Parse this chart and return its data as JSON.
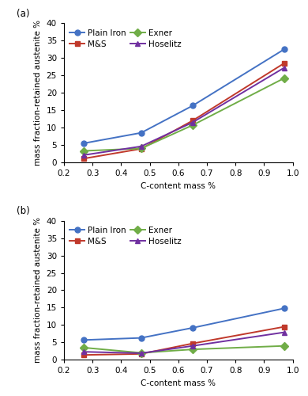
{
  "panel_a": {
    "label": "(a)",
    "series": {
      "Plain Iron": {
        "x": [
          0.27,
          0.47,
          0.65,
          0.97
        ],
        "y": [
          5.5,
          8.5,
          16.3,
          32.5
        ],
        "color": "#4472C4",
        "marker": "o",
        "linestyle": "-"
      },
      "M&S": {
        "x": [
          0.27,
          0.47,
          0.65,
          0.97
        ],
        "y": [
          1.1,
          3.9,
          12.0,
          28.5
        ],
        "color": "#C0392B",
        "marker": "s",
        "linestyle": "-"
      },
      "Exner": {
        "x": [
          0.27,
          0.47,
          0.65,
          0.97
        ],
        "y": [
          3.3,
          4.0,
          10.7,
          24.2
        ],
        "color": "#70AD47",
        "marker": "D",
        "linestyle": "-"
      },
      "Hoselitz": {
        "x": [
          0.27,
          0.47,
          0.65,
          0.97
        ],
        "y": [
          2.1,
          4.6,
          11.5,
          27.2
        ],
        "color": "#7030A0",
        "marker": "^",
        "linestyle": "-"
      }
    },
    "ylim": [
      0,
      40
    ],
    "yticks": [
      0,
      5,
      10,
      15,
      20,
      25,
      30,
      35,
      40
    ],
    "xlim": [
      0.2,
      1.0
    ],
    "xticks": [
      0.2,
      0.3,
      0.4,
      0.5,
      0.6,
      0.7,
      0.8,
      0.9,
      1.0
    ],
    "ylabel": "mass fraction-retained austenite %",
    "xlabel": "C-content mass %"
  },
  "panel_b": {
    "label": "(b)",
    "series": {
      "Plain Iron": {
        "x": [
          0.27,
          0.47,
          0.65,
          0.97
        ],
        "y": [
          5.7,
          6.3,
          9.2,
          14.8
        ],
        "color": "#4472C4",
        "marker": "o",
        "linestyle": "-"
      },
      "M&S": {
        "x": [
          0.27,
          0.47,
          0.65,
          0.97
        ],
        "y": [
          1.4,
          1.7,
          4.7,
          9.5
        ],
        "color": "#C0392B",
        "marker": "s",
        "linestyle": "-"
      },
      "Exner": {
        "x": [
          0.27,
          0.47,
          0.65,
          0.97
        ],
        "y": [
          3.5,
          2.0,
          3.0,
          4.0
        ],
        "color": "#70AD47",
        "marker": "D",
        "linestyle": "-"
      },
      "Hoselitz": {
        "x": [
          0.27,
          0.47,
          0.65,
          0.97
        ],
        "y": [
          2.3,
          1.9,
          4.0,
          7.9
        ],
        "color": "#7030A0",
        "marker": "^",
        "linestyle": "-"
      }
    },
    "ylim": [
      0,
      40
    ],
    "yticks": [
      0,
      5,
      10,
      15,
      20,
      25,
      30,
      35,
      40
    ],
    "xlim": [
      0.2,
      1.0
    ],
    "xticks": [
      0.2,
      0.3,
      0.4,
      0.5,
      0.6,
      0.7,
      0.8,
      0.9,
      1.0
    ],
    "ylabel": "mass fraction-retained austenite %",
    "xlabel": "C-content mass %"
  },
  "legend_order": [
    "Plain Iron",
    "M&S",
    "Exner",
    "Hoselitz"
  ],
  "legend_ncol": 2,
  "background_color": "#ffffff",
  "marker_size": 5,
  "linewidth": 1.4,
  "font_size": 7.5,
  "label_fontsize": 7.5,
  "tick_fontsize": 7.5
}
